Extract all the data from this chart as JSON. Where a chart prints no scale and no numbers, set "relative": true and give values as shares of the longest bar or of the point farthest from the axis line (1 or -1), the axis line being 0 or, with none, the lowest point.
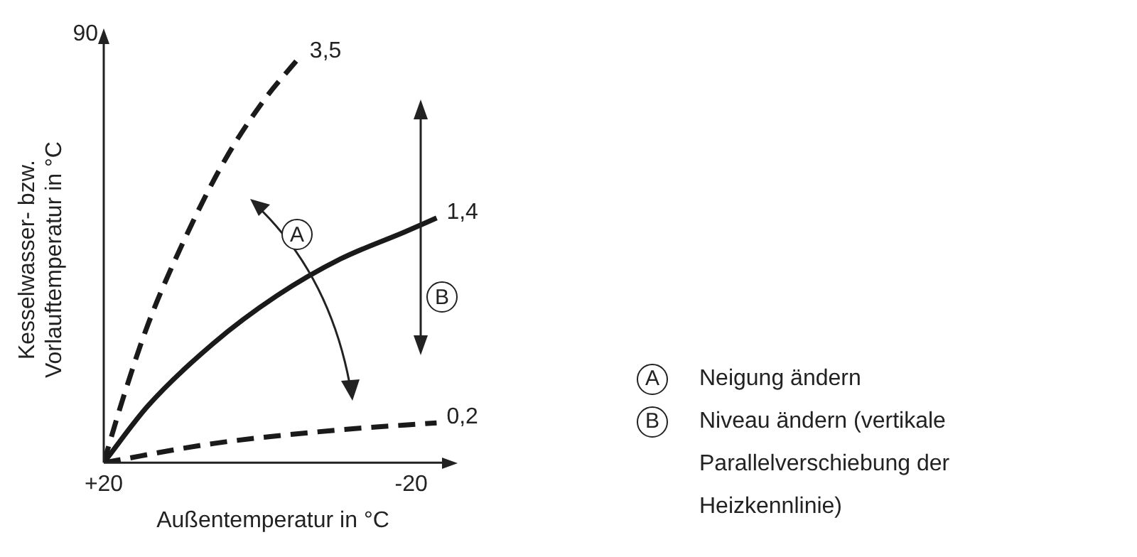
{
  "chart_data": {
    "type": "line",
    "xlabel": "Außentemperatur in °C",
    "ylabel": "Kesselwasser- bzw. Vorlauftemperatur in °C",
    "relative": true,
    "xlim": [
      20,
      -24
    ],
    "xticks": [
      {
        "value": 20,
        "label": "+20"
      },
      -20
    ],
    "grid": false,
    "legend": false,
    "marker": "none",
    "series": [
      {
        "name": "3,5",
        "color": "#1a1a1a",
        "line_style": "dashed",
        "x": [
          20,
          17.5,
          14.2,
          9.2,
          4.2,
          -0.8,
          -5.5
        ],
        "values": [
          0,
          0.158,
          0.343,
          0.562,
          0.747,
          0.892,
          1
        ]
      },
      {
        "name": "1,4",
        "color": "#1a1a1a",
        "line_style": "solid",
        "x": [
          20,
          14.2,
          5.8,
          -2.5,
          -10.8,
          -19.2,
          -23.3
        ],
        "values": [
          0,
          0.141,
          0.293,
          0.411,
          0.502,
          0.569,
          0.603
        ]
      },
      {
        "name": "0,2",
        "color": "#1a1a1a",
        "line_style": "dashed",
        "x": [
          20,
          5.8,
          -10.8,
          -23.3
        ],
        "values": [
          0,
          0.047,
          0.081,
          0.098
        ]
      }
    ],
    "annotations": [
      "90",
      "A",
      "B",
      "Neigung ändern",
      "Niveau ändern (vertikale Parallelverschiebung der Heizkennlinie)"
    ]
  }
}
